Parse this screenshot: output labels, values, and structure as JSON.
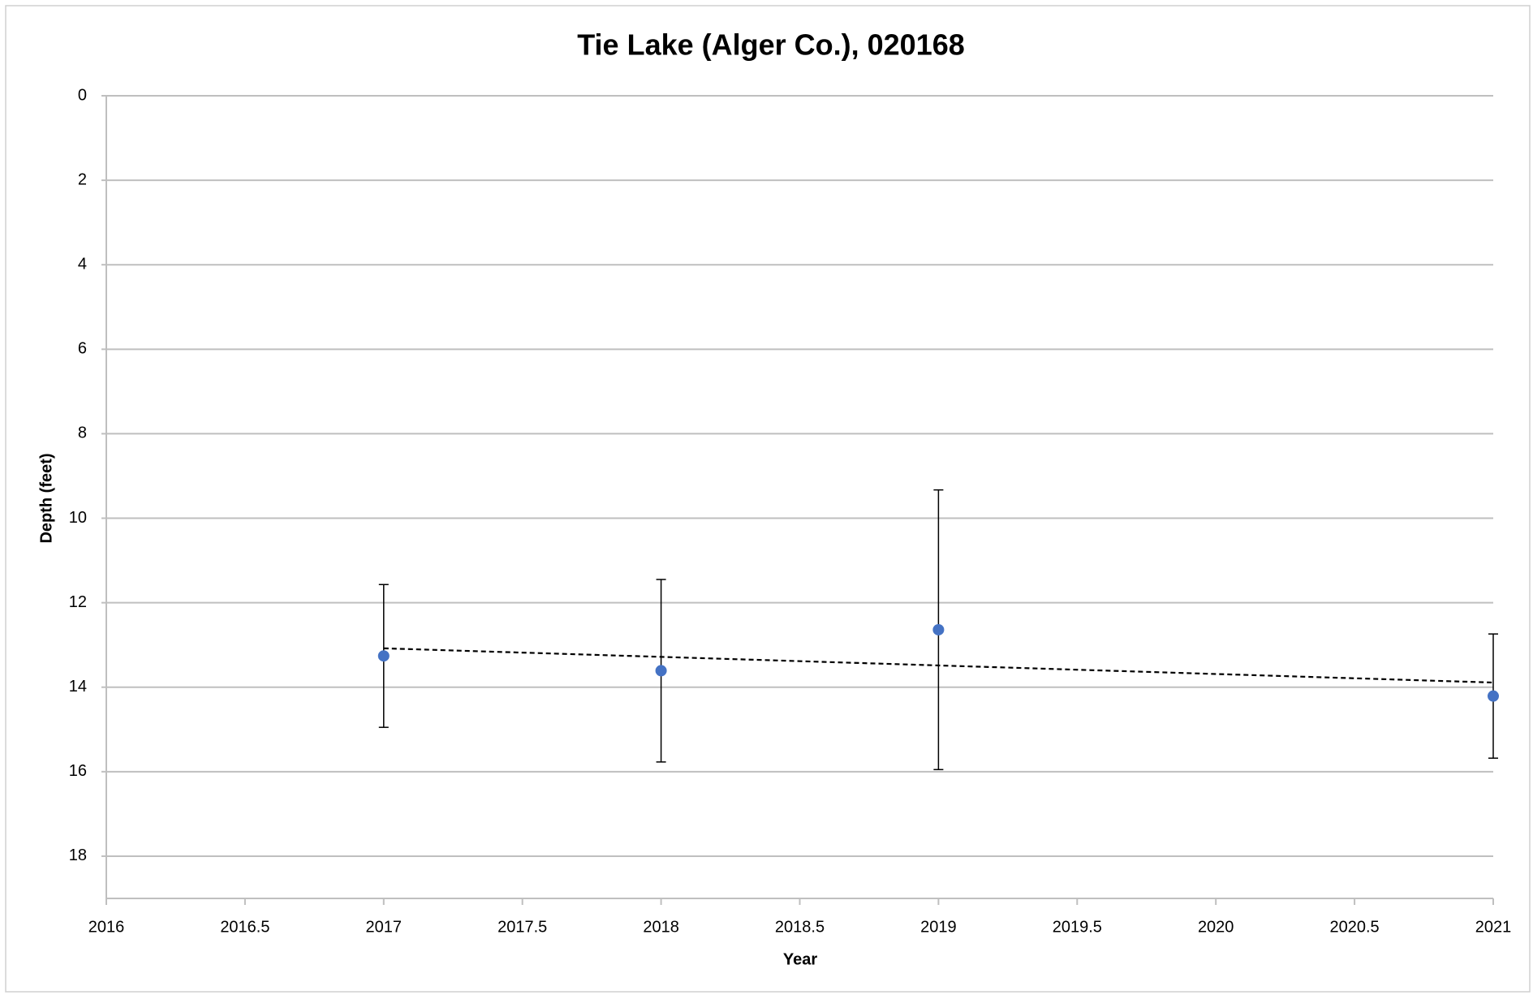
{
  "chart_data": {
    "type": "scatter",
    "title": "Tie Lake (Alger Co.), 020168",
    "x_label": "Year",
    "y_label": "Depth (feet)",
    "series": [
      {
        "name": "Depth",
        "color": "#4472c4",
        "x": [
          2017,
          2018,
          2019,
          2021
        ],
        "values": [
          13.26,
          13.61,
          12.64,
          14.21
        ],
        "errors": [
          1.69,
          2.16,
          3.31,
          1.47
        ]
      }
    ],
    "trendline": {
      "x": [
        2017,
        2021
      ],
      "values": [
        13.08,
        13.89
      ],
      "color": "#000000",
      "dashed": true
    },
    "xlim": [
      2016,
      2021
    ],
    "xticks": [
      2016,
      2016.5,
      2017,
      2017.5,
      2018,
      2018.5,
      2019,
      2019.5,
      2020,
      2020.5,
      2021
    ],
    "ylim": [
      0,
      19
    ],
    "yticks": [
      0,
      2,
      4,
      6,
      8,
      10,
      12,
      14,
      16,
      18
    ],
    "y_inverted": true,
    "grid": true
  }
}
